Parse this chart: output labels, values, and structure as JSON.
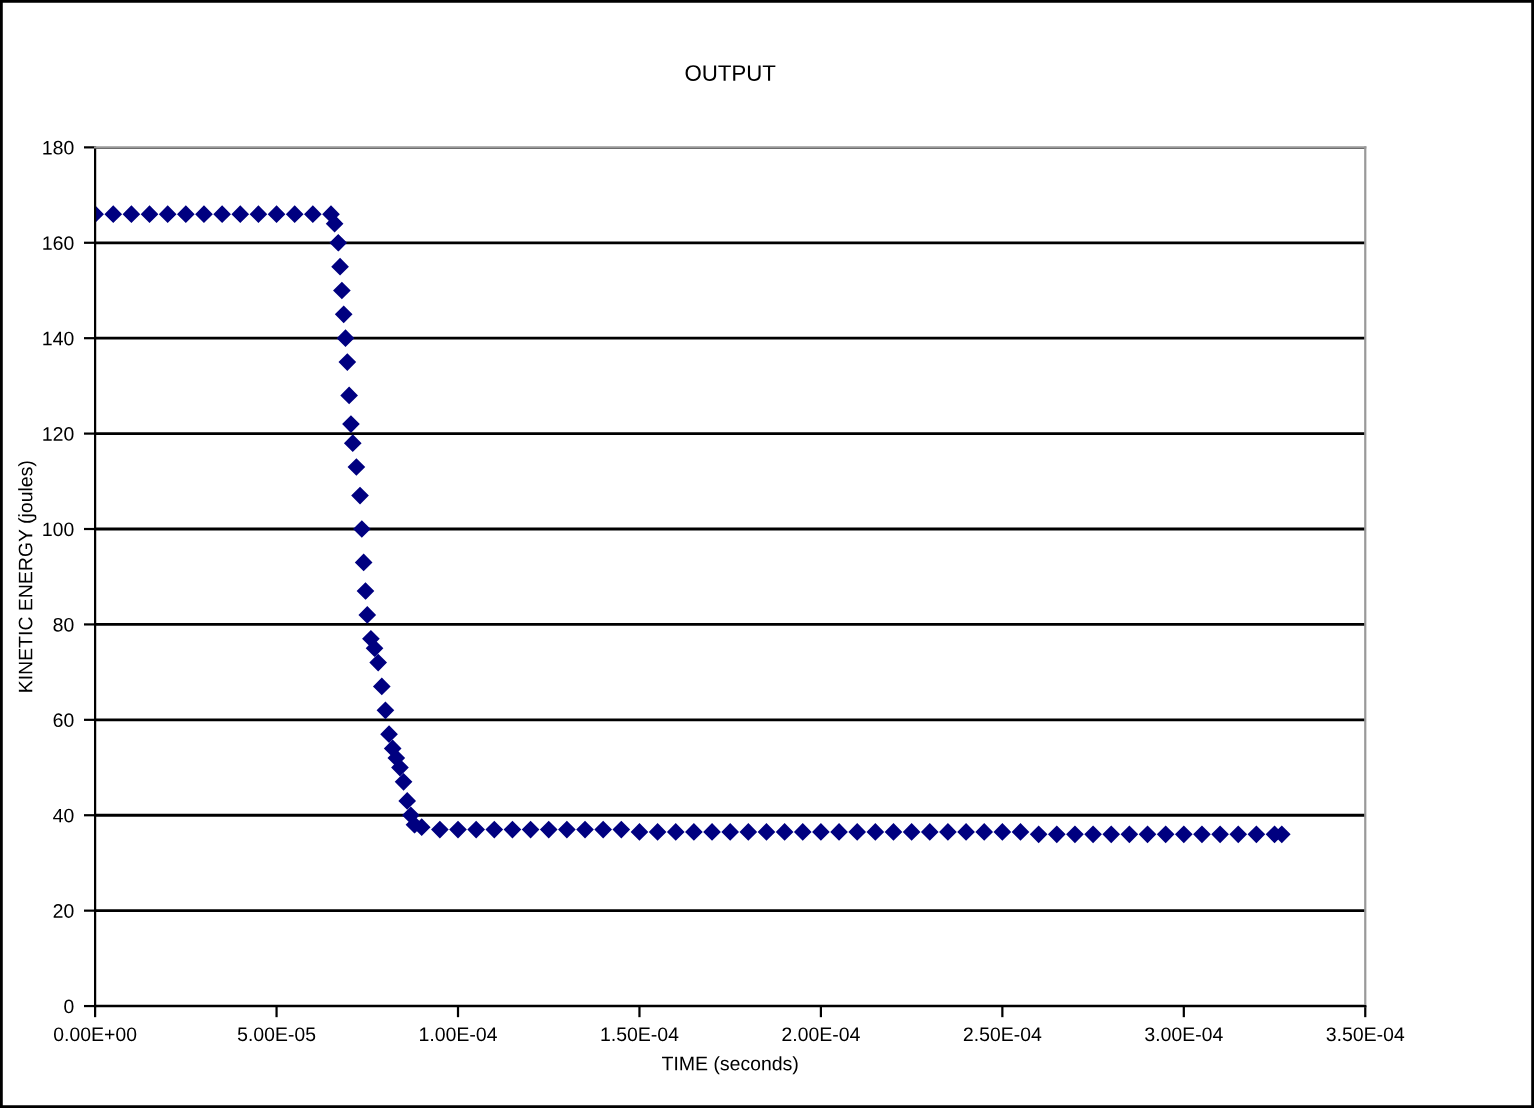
{
  "chart_data": {
    "type": "scatter",
    "title": "OUTPUT",
    "xlabel": "TIME (seconds)",
    "ylabel": "KINETIC ENERGY (joules)",
    "xlim": [
      0,
      0.00035
    ],
    "ylim": [
      0,
      180
    ],
    "xticks": [
      {
        "value": 0,
        "label": "0.00E+00"
      },
      {
        "value": 5e-05,
        "label": "5.00E-05"
      },
      {
        "value": 0.0001,
        "label": "1.00E-04"
      },
      {
        "value": 0.00015,
        "label": "1.50E-04"
      },
      {
        "value": 0.0002,
        "label": "2.00E-04"
      },
      {
        "value": 0.00025,
        "label": "2.50E-04"
      },
      {
        "value": 0.0003,
        "label": "3.00E-04"
      },
      {
        "value": 0.00035,
        "label": "3.50E-04"
      }
    ],
    "yticks": [
      0,
      20,
      40,
      60,
      80,
      100,
      120,
      140,
      160,
      180
    ],
    "grid": "y",
    "marker": "diamond",
    "series": [
      {
        "color": "#000080",
        "x": [
          0,
          5e-06,
          1e-05,
          1.5e-05,
          2e-05,
          2.5e-05,
          3e-05,
          3.5e-05,
          4e-05,
          4.5e-05,
          5e-05,
          5.5e-05,
          6e-05,
          6.5e-05,
          6.6e-05,
          6.7e-05,
          6.75e-05,
          6.8e-05,
          6.85e-05,
          6.9e-05,
          6.95e-05,
          7e-05,
          7.05e-05,
          7.1e-05,
          7.2e-05,
          7.3e-05,
          7.35e-05,
          7.4e-05,
          7.45e-05,
          7.5e-05,
          7.6e-05,
          7.7e-05,
          7.8e-05,
          7.9e-05,
          8e-05,
          8.1e-05,
          8.2e-05,
          8.3e-05,
          8.4e-05,
          8.5e-05,
          8.6e-05,
          8.7e-05,
          8.8e-05,
          9e-05,
          9.5e-05,
          0.0001,
          0.000105,
          0.00011,
          0.000115,
          0.00012,
          0.000125,
          0.00013,
          0.000135,
          0.00014,
          0.000145,
          0.00015,
          0.000155,
          0.00016,
          0.000165,
          0.00017,
          0.000175,
          0.00018,
          0.000185,
          0.00019,
          0.000195,
          0.0002,
          0.000205,
          0.00021,
          0.000215,
          0.00022,
          0.000225,
          0.00023,
          0.000235,
          0.00024,
          0.000245,
          0.00025,
          0.000255,
          0.00026,
          0.000265,
          0.00027,
          0.000275,
          0.00028,
          0.000285,
          0.00029,
          0.000295,
          0.0003,
          0.000305,
          0.00031,
          0.000315,
          0.00032,
          0.000325,
          0.000327
        ],
        "values": [
          166,
          166,
          166,
          166,
          166,
          166,
          166,
          166,
          166,
          166,
          166,
          166,
          166,
          166,
          164,
          160,
          155,
          150,
          145,
          140,
          135,
          128,
          122,
          118,
          113,
          107,
          100,
          93,
          87,
          82,
          77,
          75,
          72,
          67,
          62,
          57,
          54,
          52,
          50,
          47,
          43,
          40,
          38,
          37.5,
          37,
          37,
          37,
          37,
          37,
          37,
          37,
          37,
          37,
          37,
          37,
          36.5,
          36.5,
          36.5,
          36.5,
          36.5,
          36.5,
          36.5,
          36.5,
          36.5,
          36.5,
          36.5,
          36.5,
          36.5,
          36.5,
          36.5,
          36.5,
          36.5,
          36.5,
          36.5,
          36.5,
          36.5,
          36.5,
          36,
          36,
          36,
          36,
          36,
          36,
          36,
          36,
          36,
          36,
          36,
          36,
          36,
          36,
          36
        ]
      }
    ]
  }
}
